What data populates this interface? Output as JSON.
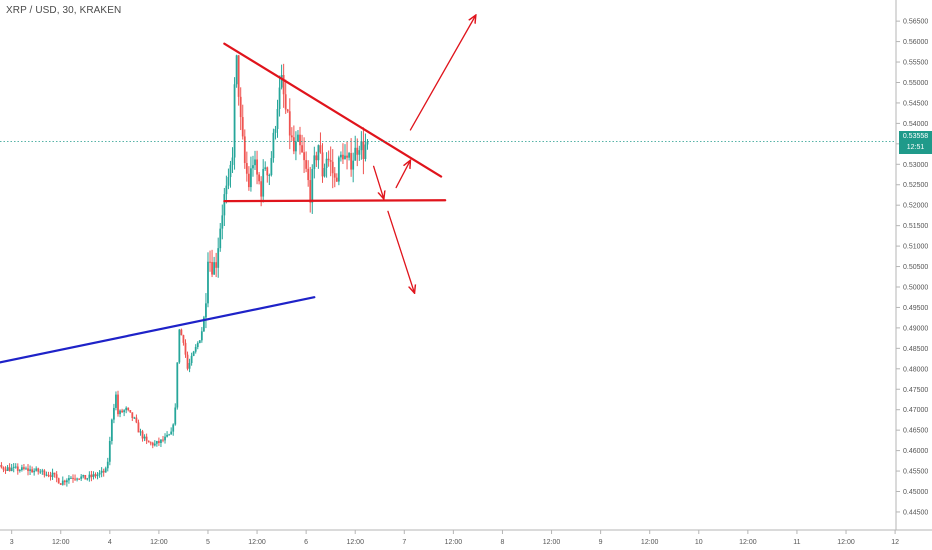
{
  "header": {
    "symbol": "XRP / USD, 30, KRAKEN"
  },
  "current_price": {
    "value": "0.53558",
    "timer": "12:51"
  },
  "colors": {
    "up": "#26a69a",
    "down": "#ef5350",
    "drawing_red": "#e0141c",
    "drawing_blue": "#1e22c8",
    "current_line": "#1f9a8a",
    "axis_text": "#555555",
    "axis_line": "#b5b5b5"
  },
  "chart_data": {
    "type": "candlestick",
    "title": "XRP / USD, 30, KRAKEN",
    "y_ticks": [
      "0.56500",
      "0.56000",
      "0.55500",
      "0.55000",
      "0.54500",
      "0.54000",
      "0.53500",
      "0.53000",
      "0.52500",
      "0.52000",
      "0.51500",
      "0.51000",
      "0.50500",
      "0.50000",
      "0.49500",
      "0.49000",
      "0.48500",
      "0.48000",
      "0.47500",
      "0.47000",
      "0.46500",
      "0.46000",
      "0.45500",
      "0.45000",
      "0.44500"
    ],
    "ylim": [
      0.4435,
      0.5675
    ],
    "x_ticks": [
      "3",
      "12:00",
      "4",
      "12:00",
      "5",
      "12:00",
      "6",
      "12:00",
      "7",
      "12:00",
      "8",
      "12:00",
      "9",
      "12:00",
      "10",
      "12:00",
      "11",
      "12:00",
      "12"
    ],
    "x_tick_hours": [
      24,
      36,
      48,
      60,
      72,
      84,
      96,
      108,
      120,
      132,
      144,
      156,
      168,
      180,
      192,
      204,
      216,
      228,
      240
    ],
    "x_tick_start_index": 2,
    "grid": false,
    "price_path": [
      [
        0,
        0.457
      ],
      [
        8,
        0.4563
      ],
      [
        12,
        0.4565
      ],
      [
        16,
        0.4558
      ],
      [
        20,
        0.456
      ],
      [
        24,
        0.4555
      ],
      [
        28,
        0.4553
      ],
      [
        32,
        0.4547
      ],
      [
        34,
        0.454
      ],
      [
        36,
        0.4522
      ],
      [
        38,
        0.4534
      ],
      [
        40,
        0.4537
      ],
      [
        42,
        0.4532
      ],
      [
        44,
        0.4538
      ],
      [
        46,
        0.4545
      ],
      [
        47,
        0.455
      ],
      [
        47.5,
        0.4575
      ],
      [
        48,
        0.462
      ],
      [
        48.5,
        0.468
      ],
      [
        49,
        0.471
      ],
      [
        49.5,
        0.4735
      ],
      [
        50,
        0.469
      ],
      [
        52,
        0.47
      ],
      [
        54,
        0.4675
      ],
      [
        55,
        0.465
      ],
      [
        57,
        0.462
      ],
      [
        59,
        0.4615
      ],
      [
        61,
        0.4625
      ],
      [
        63,
        0.464
      ],
      [
        64,
        0.47
      ],
      [
        64.5,
        0.482
      ],
      [
        65,
        0.4895
      ],
      [
        66,
        0.487
      ],
      [
        67,
        0.48
      ],
      [
        69,
        0.485
      ],
      [
        70,
        0.4875
      ],
      [
        71,
        0.492
      ],
      [
        71.5,
        0.498
      ],
      [
        72,
        0.508
      ],
      [
        73,
        0.505
      ],
      [
        74,
        0.506
      ],
      [
        75,
        0.515
      ],
      [
        76,
        0.522
      ],
      [
        77,
        0.525
      ],
      [
        78,
        0.533
      ],
      [
        78.5,
        0.548
      ],
      [
        79,
        0.555
      ],
      [
        79.5,
        0.548
      ],
      [
        80,
        0.54
      ],
      [
        81,
        0.53
      ],
      [
        82,
        0.525
      ],
      [
        83,
        0.531
      ],
      [
        84,
        0.527
      ],
      [
        85,
        0.524
      ],
      [
        86,
        0.53
      ],
      [
        87,
        0.528
      ],
      [
        88,
        0.536
      ],
      [
        89,
        0.545
      ],
      [
        90,
        0.55
      ],
      [
        91,
        0.543
      ],
      [
        92,
        0.538
      ],
      [
        93,
        0.533
      ],
      [
        94,
        0.535
      ],
      [
        95,
        0.532
      ],
      [
        96,
        0.528
      ],
      [
        97,
        0.523
      ],
      [
        98,
        0.53
      ],
      [
        99,
        0.535
      ],
      [
        100,
        0.528
      ],
      [
        101,
        0.532
      ],
      [
        102,
        0.53
      ],
      [
        103,
        0.526
      ],
      [
        104,
        0.53
      ],
      [
        105,
        0.533
      ],
      [
        106,
        0.53
      ],
      [
        107,
        0.531
      ],
      [
        108,
        0.533
      ],
      [
        109,
        0.5355
      ],
      [
        110,
        0.533
      ],
      [
        111,
        0.5355
      ]
    ],
    "last_price": 0.53558,
    "drawings": [
      {
        "kind": "trendline",
        "color": "red",
        "from": [
          76.0,
          0.5595
        ],
        "to": [
          129.0,
          0.527
        ]
      },
      {
        "kind": "trendline",
        "color": "red",
        "from": [
          76.0,
          0.521
        ],
        "to": [
          130.0,
          0.5212
        ]
      },
      {
        "kind": "trendline",
        "color": "blue",
        "from": [
          0.0,
          0.4772
        ],
        "to": [
          98.0,
          0.4975
        ]
      },
      {
        "kind": "arrow",
        "color": "red",
        "from": [
          121.5,
          0.5384
        ],
        "to": [
          137.5,
          0.5665
        ]
      },
      {
        "kind": "arrow",
        "color": "red",
        "from": [
          118.0,
          0.5243
        ],
        "to": [
          121.5,
          0.531
        ]
      },
      {
        "kind": "arrow",
        "color": "red",
        "from": [
          112.5,
          0.5295
        ],
        "to": [
          115.0,
          0.5215
        ]
      },
      {
        "kind": "arrow",
        "color": "red",
        "from": [
          116.0,
          0.5185
        ],
        "to": [
          122.5,
          0.4985
        ]
      }
    ]
  }
}
